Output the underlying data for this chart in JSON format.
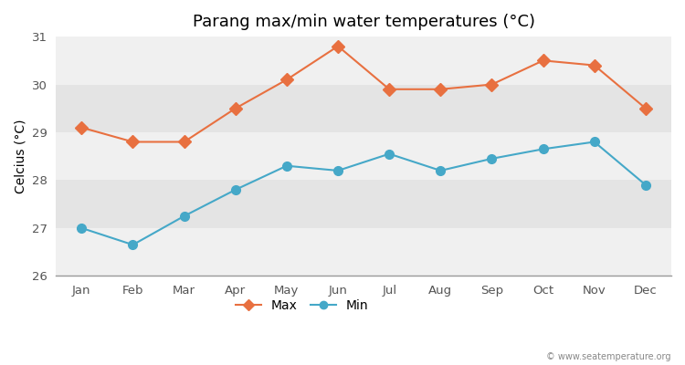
{
  "title": "Parang max/min water temperatures (°C)",
  "ylabel": "Celcius (°C)",
  "months": [
    "Jan",
    "Feb",
    "Mar",
    "Apr",
    "May",
    "Jun",
    "Jul",
    "Aug",
    "Sep",
    "Oct",
    "Nov",
    "Dec"
  ],
  "max_temps": [
    29.1,
    28.8,
    28.8,
    29.5,
    30.1,
    30.8,
    29.9,
    29.9,
    30.0,
    30.5,
    30.4,
    29.5
  ],
  "min_temps": [
    27.0,
    26.65,
    27.25,
    27.8,
    28.3,
    28.2,
    28.55,
    28.2,
    28.45,
    28.65,
    28.8,
    27.9
  ],
  "max_color": "#e87040",
  "min_color": "#45a8c8",
  "bg_color": "#ffffff",
  "band_colors": [
    "#f0f0f0",
    "#e4e4e4"
  ],
  "ylim_min": 26,
  "ylim_max": 31,
  "yticks": [
    26,
    27,
    28,
    29,
    30,
    31
  ],
  "legend_label_max": "Max",
  "legend_label_min": "Min",
  "watermark": "© www.seatemperature.org",
  "title_fontsize": 13,
  "axis_label_fontsize": 10,
  "tick_fontsize": 9.5
}
